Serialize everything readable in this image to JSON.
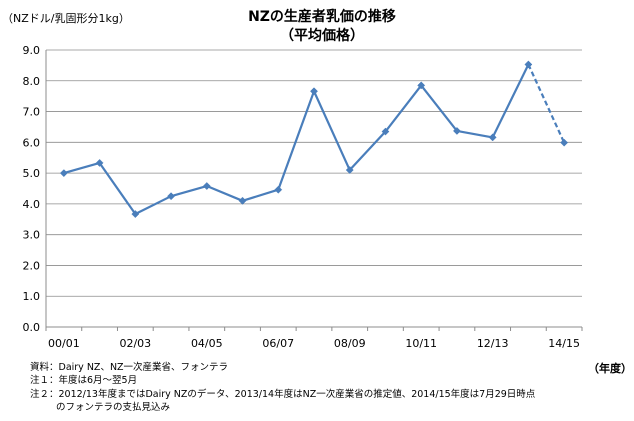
{
  "chart_data": {
    "type": "line",
    "title": "NZの生産者乳価の推移",
    "subtitle": "（平均価格）",
    "ylabel": "（NZドル/乳固形分1kg）",
    "xlabel": "（年度）",
    "ylim": [
      0,
      9
    ],
    "yticks": [
      "0.0",
      "1.0",
      "2.0",
      "3.0",
      "4.0",
      "5.0",
      "6.0",
      "7.0",
      "8.0",
      "9.0"
    ],
    "x_tick_labels": [
      "00/01",
      "02/03",
      "04/05",
      "06/07",
      "08/09",
      "10/11",
      "12/13",
      "14/15"
    ],
    "categories": [
      "00/01",
      "01/02",
      "02/03",
      "03/04",
      "04/05",
      "05/06",
      "06/07",
      "07/08",
      "08/09",
      "09/10",
      "10/11",
      "11/12",
      "12/13",
      "13/14",
      "14/15"
    ],
    "values": [
      5.0,
      5.33,
      3.67,
      4.25,
      4.58,
      4.1,
      4.46,
      7.66,
      5.1,
      6.35,
      7.85,
      6.37,
      6.16,
      8.53,
      5.99
    ],
    "dashed_from_index": 13,
    "grid": true,
    "colors": {
      "series": "#4a7ebb",
      "grid": "#8c8c8c",
      "axis": "#8c8c8c"
    }
  },
  "notes": {
    "source": "資料：Dairy NZ、NZ一次産業省、フォンテラ",
    "note1": "注１：年度は6月～翌5月",
    "note2_line1": "注２：2012/13年度まではDairy NZのデータ、2013/14年度はNZ一次産業省の推定値、2014/15年度は7月29日時点",
    "note2_line2": "のフォンテラの支払見込み"
  }
}
